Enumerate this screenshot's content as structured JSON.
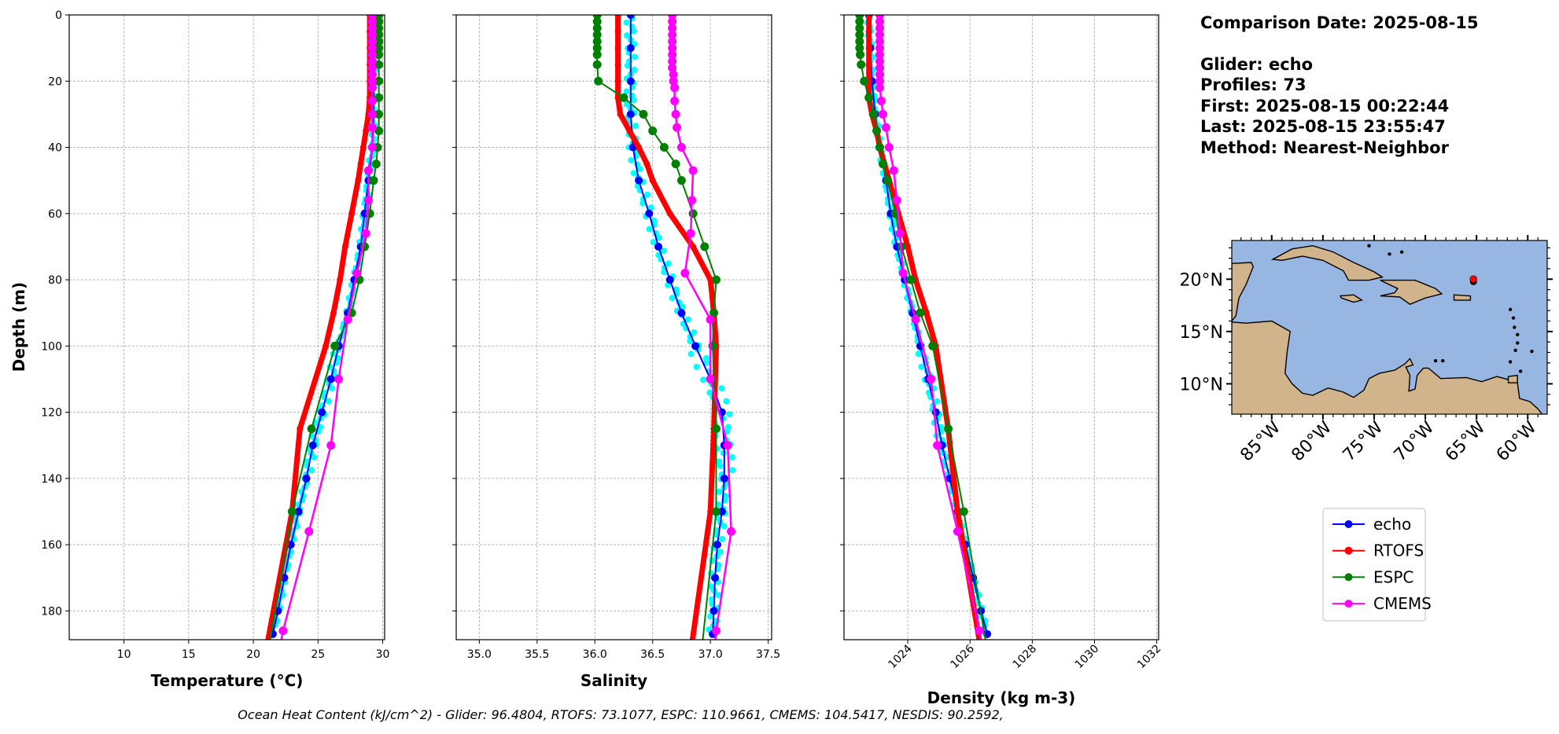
{
  "info": {
    "comparison_date": "Comparison Date: 2025-08-15",
    "glider": "Glider: echo",
    "profiles": "Profiles: 73",
    "first": "First: 2025-08-15 00:22:44",
    "last": "Last: 2025-08-15 23:55:47",
    "method": "Method: Nearest-Neighbor"
  },
  "footer": "Ocean Heat Content (kJ/cm^2) - Glider: 96.4804,  RTOFS: 73.1077,  ESPC: 110.9661,  CMEMS: 104.5417,  NESDIS: 90.2592,",
  "colors": {
    "echo": "#0000ff",
    "RTOFS": "#ff0000",
    "ESPC": "#008000",
    "CMEMS": "#ff00ff",
    "raw": "#00ffff",
    "ocean": "#97b6e1",
    "land": "#d2b48c"
  },
  "map": {
    "lon_ticks": [
      "85°W",
      "80°W",
      "75°W",
      "70°W",
      "65°W",
      "60°W"
    ],
    "lon_values": [
      -85,
      -80,
      -75,
      -70,
      -65,
      -60
    ],
    "lat_ticks": [
      "20°N",
      "15°N",
      "10°N"
    ],
    "lat_values": [
      20,
      15,
      10
    ],
    "extent": {
      "lon": [
        -88.9,
        -58.1
      ],
      "lat": [
        7.1,
        23.7
      ]
    },
    "glider_position": {
      "lon": -65.3,
      "lat": 20.0
    }
  },
  "legend": [
    "echo",
    "RTOFS",
    "ESPC",
    "CMEMS"
  ],
  "chart_data": {
    "type": "line",
    "ylabel": "Depth (m)",
    "ylim": [
      188.7,
      0
    ],
    "yticks": [
      0,
      20,
      40,
      60,
      80,
      100,
      120,
      140,
      160,
      180
    ],
    "grid": true,
    "legend_position": "right",
    "panels": [
      {
        "key": "temp",
        "xlabel": "Temperature (°C)",
        "xlim": [
          5.77,
          30.15
        ],
        "xticks": [
          "10",
          "15",
          "20",
          "25",
          "30"
        ],
        "xtick_rotation": 0,
        "series": [
          {
            "name": "echo",
            "depth": [
              0,
              10,
              20,
              30,
              40,
              50,
              60,
              70,
              80,
              90,
              100,
              110,
              120,
              130,
              140,
              150,
              160,
              170,
              180,
              187
            ],
            "values": [
              29.3,
              29.3,
              29.3,
              29.3,
              29.2,
              28.9,
              28.6,
              28.3,
              27.8,
              27.3,
              26.6,
              26.0,
              25.3,
              24.6,
              24.1,
              23.5,
              22.9,
              22.4,
              21.9,
              21.5
            ]
          },
          {
            "name": "RTOFS",
            "depth": [
              0,
              5,
              10,
              15,
              20,
              25,
              30,
              35,
              40,
              45,
              50,
              60,
              70,
              80,
              90,
              100,
              125,
              150,
              200
            ],
            "values": [
              29.0,
              29.0,
              29.0,
              29.0,
              29.0,
              29.0,
              28.9,
              28.7,
              28.5,
              28.3,
              28.1,
              27.6,
              27.1,
              26.7,
              26.2,
              25.6,
              23.6,
              23.0,
              20.6
            ]
          },
          {
            "name": "ESPC",
            "depth": [
              0,
              2,
              4,
              6,
              8,
              10,
              12,
              15,
              20,
              25,
              30,
              35,
              40,
              45,
              50,
              60,
              70,
              80,
              90,
              100,
              125,
              150,
              200
            ],
            "values": [
              29.7,
              29.7,
              29.7,
              29.7,
              29.7,
              29.7,
              29.7,
              29.7,
              29.7,
              29.7,
              29.7,
              29.7,
              29.6,
              29.5,
              29.3,
              29.0,
              28.6,
              28.2,
              27.6,
              26.3,
              24.5,
              23.0,
              20.8
            ]
          },
          {
            "name": "CMEMS",
            "depth": [
              0,
              2,
              4,
              6,
              8,
              10,
              12,
              14,
              16,
              18,
              20,
              22,
              26,
              30,
              34,
              40,
              47,
              56,
              66,
              78,
              92,
              110,
              130,
              156,
              186,
              222
            ],
            "values": [
              29.2,
              29.2,
              29.2,
              29.2,
              29.2,
              29.2,
              29.2,
              29.2,
              29.2,
              29.2,
              29.2,
              29.2,
              29.2,
              29.2,
              29.2,
              29.2,
              28.9,
              28.9,
              28.7,
              28.0,
              27.3,
              26.6,
              26.0,
              24.3,
              22.3,
              20.5
            ]
          }
        ]
      },
      {
        "key": "sal",
        "xlabel": "Salinity",
        "xlim": [
          34.8,
          37.53
        ],
        "xticks": [
          "35.0",
          "35.5",
          "36.0",
          "36.5",
          "37.0",
          "37.5"
        ],
        "xtick_rotation": 0,
        "series": [
          {
            "name": "echo",
            "depth": [
              0,
              10,
              20,
              30,
              40,
              50,
              60,
              70,
              80,
              90,
              100,
              110,
              120,
              130,
              140,
              150,
              160,
              170,
              180,
              187
            ],
            "values": [
              36.31,
              36.31,
              36.31,
              36.31,
              36.33,
              36.38,
              36.47,
              36.55,
              36.65,
              36.75,
              36.87,
              37.0,
              37.1,
              37.12,
              37.12,
              37.1,
              37.06,
              37.04,
              37.03,
              37.02
            ]
          },
          {
            "name": "RTOFS",
            "depth": [
              0,
              5,
              10,
              15,
              20,
              25,
              30,
              35,
              40,
              45,
              50,
              60,
              70,
              80,
              90,
              100,
              125,
              150,
              200
            ],
            "values": [
              36.2,
              36.2,
              36.2,
              36.2,
              36.2,
              36.2,
              36.22,
              36.3,
              36.38,
              36.45,
              36.5,
              36.65,
              36.85,
              37.0,
              37.03,
              37.05,
              37.03,
              37.0,
              36.8
            ]
          },
          {
            "name": "ESPC",
            "depth": [
              0,
              2,
              4,
              6,
              8,
              10,
              12,
              15,
              20,
              25,
              30,
              35,
              40,
              45,
              50,
              60,
              70,
              80,
              90,
              100,
              125,
              150,
              200
            ],
            "values": [
              36.02,
              36.02,
              36.02,
              36.02,
              36.02,
              36.02,
              36.02,
              36.02,
              36.03,
              36.25,
              36.42,
              36.5,
              36.6,
              36.7,
              36.75,
              36.85,
              36.95,
              37.05,
              37.03,
              37.02,
              37.05,
              37.05,
              36.9
            ]
          },
          {
            "name": "CMEMS",
            "depth": [
              0,
              2,
              4,
              6,
              8,
              10,
              12,
              14,
              16,
              18,
              20,
              22,
              26,
              30,
              34,
              40,
              47,
              56,
              66,
              78,
              92,
              110,
              130,
              156,
              186,
              222
            ],
            "values": [
              36.67,
              36.67,
              36.67,
              36.67,
              36.67,
              36.67,
              36.67,
              36.67,
              36.67,
              36.68,
              36.68,
              36.69,
              36.69,
              36.7,
              36.71,
              36.75,
              36.85,
              36.84,
              36.83,
              36.78,
              37.0,
              37.0,
              37.15,
              37.18,
              37.05,
              36.95
            ]
          }
        ]
      },
      {
        "key": "dens",
        "xlabel": "Density (kg m-3)",
        "xlim": [
          1021.95,
          1032.06
        ],
        "xticks": [
          "1024",
          "1026",
          "1028",
          "1030",
          "1032"
        ],
        "xtick_rotation": 45,
        "series": [
          {
            "name": "echo",
            "depth": [
              0,
              10,
              20,
              30,
              40,
              50,
              60,
              70,
              80,
              90,
              100,
              110,
              120,
              130,
              140,
              150,
              160,
              170,
              180,
              187
            ],
            "values": [
              1022.75,
              1022.8,
              1022.85,
              1022.95,
              1023.1,
              1023.3,
              1023.45,
              1023.65,
              1023.9,
              1024.15,
              1024.4,
              1024.65,
              1024.9,
              1025.1,
              1025.35,
              1025.6,
              1025.85,
              1026.1,
              1026.35,
              1026.55
            ]
          },
          {
            "name": "RTOFS",
            "depth": [
              0,
              5,
              10,
              15,
              20,
              25,
              30,
              35,
              40,
              45,
              50,
              60,
              70,
              80,
              90,
              100,
              125,
              150,
              200
            ],
            "values": [
              1022.75,
              1022.75,
              1022.75,
              1022.75,
              1022.75,
              1022.75,
              1022.85,
              1023.0,
              1023.1,
              1023.25,
              1023.4,
              1023.7,
              1024.0,
              1024.25,
              1024.6,
              1024.9,
              1025.3,
              1025.6,
              1026.5
            ]
          },
          {
            "name": "ESPC",
            "depth": [
              0,
              2,
              4,
              6,
              8,
              10,
              12,
              15,
              20,
              25,
              30,
              35,
              40,
              45,
              50,
              60,
              70,
              80,
              90,
              100,
              125,
              150,
              200
            ],
            "values": [
              1022.45,
              1022.45,
              1022.45,
              1022.45,
              1022.45,
              1022.45,
              1022.47,
              1022.5,
              1022.6,
              1022.75,
              1022.9,
              1023.0,
              1023.1,
              1023.2,
              1023.35,
              1023.6,
              1023.8,
              1024.1,
              1024.4,
              1024.8,
              1025.3,
              1025.8,
              1026.7
            ]
          },
          {
            "name": "CMEMS",
            "depth": [
              0,
              2,
              4,
              6,
              8,
              10,
              12,
              14,
              16,
              18,
              20,
              22,
              26,
              30,
              34,
              40,
              47,
              56,
              66,
              78,
              92,
              110,
              130,
              156,
              186,
              222
            ],
            "values": [
              1023.1,
              1023.1,
              1023.1,
              1023.1,
              1023.1,
              1023.1,
              1023.1,
              1023.1,
              1023.1,
              1023.1,
              1023.1,
              1023.1,
              1023.15,
              1023.2,
              1023.3,
              1023.4,
              1023.55,
              1023.65,
              1023.75,
              1023.85,
              1024.25,
              1024.75,
              1024.95,
              1025.6,
              1026.3,
              1027.0
            ]
          }
        ]
      }
    ]
  }
}
